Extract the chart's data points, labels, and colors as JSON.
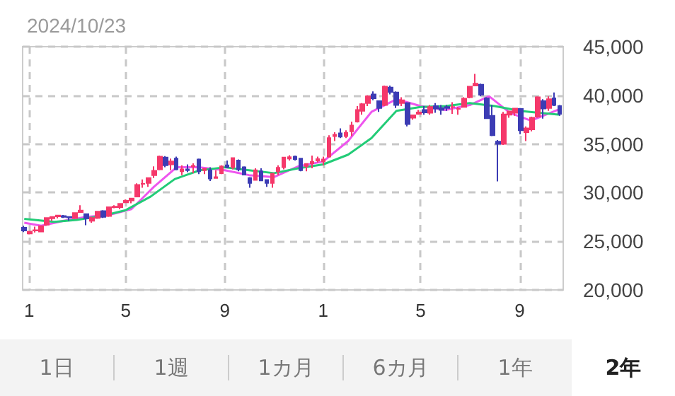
{
  "chart_data": {
    "type": "candlestick",
    "title": "2024/10/23",
    "x": [
      "2022-12-26",
      "2023-01-02",
      "2023-01-09",
      "2023-01-16",
      "2023-01-23",
      "2023-01-30",
      "2023-02-06",
      "2023-02-13",
      "2023-02-20",
      "2023-02-27",
      "2023-03-06",
      "2023-03-13",
      "2023-03-20",
      "2023-03-27",
      "2023-04-03",
      "2023-04-10",
      "2023-04-17",
      "2023-04-24",
      "2023-05-01",
      "2023-05-08",
      "2023-05-15",
      "2023-05-22",
      "2023-05-29",
      "2023-06-05",
      "2023-06-12",
      "2023-06-19",
      "2023-06-26",
      "2023-07-03",
      "2023-07-10",
      "2023-07-17",
      "2023-07-24",
      "2023-07-31",
      "2023-08-07",
      "2023-08-14",
      "2023-08-21",
      "2023-08-28",
      "2023-09-04",
      "2023-09-11",
      "2023-09-18",
      "2023-09-25",
      "2023-10-02",
      "2023-10-09",
      "2023-10-16",
      "2023-10-23",
      "2023-10-30",
      "2023-11-06",
      "2023-11-13",
      "2023-11-20",
      "2023-11-27",
      "2023-12-04",
      "2023-12-11",
      "2023-12-18",
      "2023-12-25",
      "2024-01-01",
      "2024-01-08",
      "2024-01-15",
      "2024-01-22",
      "2024-01-29",
      "2024-02-05",
      "2024-02-12",
      "2024-02-19",
      "2024-02-26",
      "2024-03-04",
      "2024-03-11",
      "2024-03-18",
      "2024-03-25",
      "2024-04-01",
      "2024-04-08",
      "2024-04-15",
      "2024-04-22",
      "2024-04-29",
      "2024-05-06",
      "2024-05-13",
      "2024-05-20",
      "2024-05-27",
      "2024-06-03",
      "2024-06-10",
      "2024-06-17",
      "2024-06-24",
      "2024-07-01",
      "2024-07-08",
      "2024-07-15",
      "2024-07-22",
      "2024-07-29",
      "2024-08-05",
      "2024-08-12",
      "2024-08-19",
      "2024-08-26",
      "2024-09-02",
      "2024-09-09",
      "2024-09-16",
      "2024-09-23",
      "2024-09-30",
      "2024-10-07",
      "2024-10-14",
      "2024-10-21"
    ],
    "ohlc": [
      [
        26400,
        26600,
        25950,
        26100
      ],
      [
        25800,
        26000,
        25700,
        26000
      ],
      [
        26100,
        26500,
        25900,
        26150
      ],
      [
        26000,
        26600,
        25950,
        26550
      ],
      [
        26700,
        27450,
        26600,
        27400
      ],
      [
        27350,
        27550,
        27100,
        27500
      ],
      [
        27550,
        27700,
        27350,
        27650
      ],
      [
        27600,
        27700,
        27400,
        27500
      ],
      [
        27500,
        27550,
        27100,
        27450
      ],
      [
        27400,
        27950,
        27300,
        27900
      ],
      [
        28000,
        28700,
        28000,
        28150
      ],
      [
        27800,
        27800,
        26650,
        27350
      ],
      [
        27100,
        27500,
        26900,
        27400
      ],
      [
        27400,
        28100,
        27300,
        28050
      ],
      [
        28100,
        28200,
        27400,
        27500
      ],
      [
        27600,
        28500,
        27500,
        28500
      ],
      [
        28500,
        28700,
        28400,
        28550
      ],
      [
        28500,
        28900,
        28300,
        28850
      ],
      [
        29000,
        29300,
        29000,
        29150
      ],
      [
        29200,
        29450,
        28900,
        29400
      ],
      [
        29600,
        30950,
        29600,
        30800
      ],
      [
        30900,
        31350,
        30500,
        30900
      ],
      [
        31000,
        31500,
        30600,
        31500
      ],
      [
        31800,
        32700,
        31500,
        32250
      ],
      [
        32400,
        33800,
        32300,
        33700
      ],
      [
        33600,
        33750,
        32600,
        32800
      ],
      [
        32900,
        33500,
        32300,
        33200
      ],
      [
        33500,
        33700,
        32300,
        32400
      ],
      [
        32200,
        32800,
        31800,
        32400
      ],
      [
        32400,
        32900,
        32100,
        32300
      ],
      [
        32700,
        33000,
        32000,
        32750
      ],
      [
        33400,
        33500,
        31900,
        32200
      ],
      [
        32300,
        32500,
        31900,
        32450
      ],
      [
        32300,
        32600,
        31200,
        31450
      ],
      [
        31500,
        32300,
        31500,
        31600
      ],
      [
        32000,
        32800,
        31900,
        32700
      ],
      [
        32800,
        33300,
        32500,
        32600
      ],
      [
        32600,
        33600,
        32400,
        33550
      ],
      [
        33300,
        33400,
        32200,
        32400
      ],
      [
        32600,
        32700,
        31800,
        31850
      ],
      [
        31500,
        31600,
        30500,
        31000
      ],
      [
        31300,
        32500,
        31300,
        32300
      ],
      [
        32200,
        32500,
        31200,
        31250
      ],
      [
        31300,
        31300,
        30600,
        31000
      ],
      [
        31000,
        32000,
        30500,
        31950
      ],
      [
        32200,
        32800,
        31800,
        32550
      ],
      [
        32600,
        33600,
        32400,
        33600
      ],
      [
        33500,
        33850,
        33300,
        33650
      ],
      [
        33700,
        33800,
        33300,
        33450
      ],
      [
        33500,
        33500,
        32200,
        32300
      ],
      [
        32700,
        33000,
        32200,
        32950
      ],
      [
        33000,
        33800,
        32500,
        33150
      ],
      [
        33300,
        33700,
        33100,
        33450
      ],
      [
        33200,
        33700,
        32800,
        33400
      ],
      [
        33700,
        35900,
        33600,
        35600
      ],
      [
        35800,
        36200,
        35300,
        35950
      ],
      [
        36100,
        36600,
        35600,
        35750
      ],
      [
        35800,
        36400,
        35600,
        36150
      ],
      [
        36300,
        37300,
        35800,
        36900
      ],
      [
        37300,
        38900,
        37200,
        38500
      ],
      [
        38400,
        39200,
        38000,
        39100
      ],
      [
        39200,
        40000,
        38900,
        39900
      ],
      [
        40100,
        40400,
        39500,
        39700
      ],
      [
        39400,
        39400,
        38300,
        38700
      ],
      [
        39000,
        41000,
        38900,
        40900
      ],
      [
        40800,
        41000,
        40100,
        40350
      ],
      [
        40300,
        40400,
        38700,
        39000
      ],
      [
        39200,
        39800,
        38900,
        39500
      ],
      [
        39200,
        39300,
        36800,
        37050
      ],
      [
        37700,
        38000,
        37500,
        37950
      ],
      [
        38100,
        38500,
        38000,
        38250
      ],
      [
        38500,
        38900,
        38000,
        38250
      ],
      [
        38200,
        39000,
        38000,
        38800
      ],
      [
        38900,
        39200,
        38200,
        38650
      ],
      [
        38700,
        39000,
        38000,
        38500
      ],
      [
        38800,
        39000,
        38400,
        38700
      ],
      [
        38800,
        39300,
        38100,
        38800
      ],
      [
        38600,
        38800,
        38000,
        38600
      ],
      [
        38800,
        39800,
        38800,
        39650
      ],
      [
        39800,
        40900,
        39700,
        40900
      ],
      [
        41000,
        42200,
        41000,
        41200
      ],
      [
        41100,
        41200,
        39900,
        40050
      ],
      [
        39700,
        39800,
        37600,
        37650
      ],
      [
        37900,
        39000,
        35800,
        35900
      ],
      [
        35250,
        35400,
        31150,
        35000
      ],
      [
        35000,
        38300,
        34900,
        38050
      ],
      [
        38000,
        38400,
        37700,
        38350
      ],
      [
        38200,
        38700,
        37900,
        38650
      ],
      [
        38600,
        38700,
        36000,
        36400
      ],
      [
        36200,
        36800,
        35300,
        36600
      ],
      [
        36500,
        37800,
        36300,
        37700
      ],
      [
        37800,
        39900,
        37700,
        39800
      ],
      [
        39400,
        39600,
        37600,
        38650
      ],
      [
        38700,
        39900,
        38400,
        39600
      ],
      [
        39700,
        40300,
        38900,
        39000
      ],
      [
        38900,
        39000,
        37900,
        38100
      ]
    ],
    "colors": [
      "#3c3cb4",
      "#f5386a",
      "#f5386a",
      "#f5386a",
      "#f5386a",
      "#f5386a",
      "#f5386a",
      "#3c3cb4",
      "#3c3cb4",
      "#f5386a",
      "#f5386a",
      "#3c3cb4",
      "#f5386a",
      "#f5386a",
      "#3c3cb4",
      "#f5386a",
      "#f5386a",
      "#f5386a",
      "#f5386a",
      "#f5386a",
      "#f5386a",
      "#f5386a",
      "#f5386a",
      "#f5386a",
      "#f5386a",
      "#3c3cb4",
      "#f5386a",
      "#3c3cb4",
      "#f5386a",
      "#3c3cb4",
      "#f5386a",
      "#3c3cb4",
      "#f5386a",
      "#3c3cb4",
      "#f5386a",
      "#f5386a",
      "#3c3cb4",
      "#f5386a",
      "#3c3cb4",
      "#3c3cb4",
      "#3c3cb4",
      "#f5386a",
      "#3c3cb4",
      "#3c3cb4",
      "#f5386a",
      "#f5386a",
      "#f5386a",
      "#f5386a",
      "#3c3cb4",
      "#3c3cb4",
      "#f5386a",
      "#f5386a",
      "#f5386a",
      "#f5386a",
      "#f5386a",
      "#f5386a",
      "#3c3cb4",
      "#f5386a",
      "#f5386a",
      "#f5386a",
      "#f5386a",
      "#f5386a",
      "#3c3cb4",
      "#3c3cb4",
      "#f5386a",
      "#3c3cb4",
      "#3c3cb4",
      "#f5386a",
      "#3c3cb4",
      "#f5386a",
      "#f5386a",
      "#3c3cb4",
      "#f5386a",
      "#3c3cb4",
      "#3c3cb4",
      "#3c3cb4",
      "#f5386a",
      "#f5386a",
      "#f5386a",
      "#f5386a",
      "#f5386a",
      "#3c3cb4",
      "#3c3cb4",
      "#3c3cb4",
      "#3c3cb4",
      "#f5386a",
      "#f5386a",
      "#f5386a",
      "#3c3cb4",
      "#f5386a",
      "#f5386a",
      "#f5386a",
      "#3c3cb4",
      "#f5386a",
      "#3c3cb4",
      "#3c3cb4"
    ],
    "series": [
      {
        "type": "line",
        "color": "#ee55ee",
        "x": [
          "2022-12-26",
          "2023-01-16",
          "2023-02-13",
          "2023-03-13",
          "2023-04-10",
          "2023-05-08",
          "2023-06-05",
          "2023-07-03",
          "2023-08-01",
          "2023-09-01",
          "2023-10-01",
          "2023-11-01",
          "2023-12-01",
          "2024-01-01",
          "2024-02-01",
          "2024-03-01",
          "2024-04-01",
          "2024-05-01",
          "2024-06-01",
          "2024-07-01",
          "2024-07-25",
          "2024-08-20",
          "2024-09-15",
          "2024-10-21"
        ],
        "values": [
          26900,
          26600,
          27100,
          27500,
          27700,
          28300,
          30600,
          32600,
          32600,
          32300,
          31800,
          31600,
          32700,
          33200,
          35300,
          38300,
          39600,
          38900,
          38500,
          39000,
          39900,
          38200,
          37400,
          38600
        ]
      },
      {
        "type": "line",
        "color": "#22cc77",
        "x": [
          "2022-12-26",
          "2023-02-01",
          "2023-03-01",
          "2023-04-01",
          "2023-05-01",
          "2023-06-01",
          "2023-07-01",
          "2023-08-01",
          "2023-09-01",
          "2023-10-01",
          "2023-11-01",
          "2023-12-01",
          "2024-01-01",
          "2024-02-01",
          "2024-03-01",
          "2024-04-01",
          "2024-05-01",
          "2024-06-01",
          "2024-07-01",
          "2024-08-01",
          "2024-09-01",
          "2024-10-21"
        ],
        "values": [
          27300,
          27000,
          27200,
          27600,
          28200,
          29600,
          31400,
          32300,
          32600,
          32300,
          32000,
          32500,
          32900,
          33900,
          35600,
          38400,
          38800,
          38900,
          39200,
          38900,
          38400,
          38000
        ]
      }
    ],
    "xlim": [
      "2022-12-24",
      "2024-10-25"
    ],
    "xticks": [
      {
        "value": "2023-01-01",
        "label": "1"
      },
      {
        "value": "2023-05-01",
        "label": "5"
      },
      {
        "value": "2023-09-01",
        "label": "9"
      },
      {
        "value": "2024-01-01",
        "label": "1"
      },
      {
        "value": "2024-05-01",
        "label": "5"
      },
      {
        "value": "2024-09-01",
        "label": "9"
      }
    ],
    "ylim": [
      20000,
      45000
    ],
    "yticks": [
      {
        "value": 20000,
        "label": "20,000"
      },
      {
        "value": 25000,
        "label": "25,000"
      },
      {
        "value": 30000,
        "label": "30,000"
      },
      {
        "value": 35000,
        "label": "35,000"
      },
      {
        "value": 40000,
        "label": "40,000"
      },
      {
        "value": 45000,
        "label": "45,000"
      }
    ],
    "grid": true,
    "marker": "none",
    "annotations": [
      "1日",
      "1週",
      "1カ月",
      "6カ月",
      "1年",
      "2年"
    ]
  }
}
